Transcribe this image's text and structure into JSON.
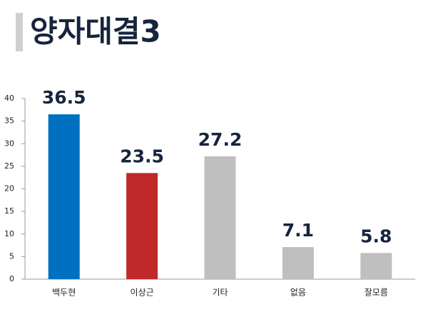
{
  "chart_data": {
    "type": "bar",
    "title": "양자대결3",
    "categories": [
      "백두현",
      "이상근",
      "기타",
      "없음",
      "잘모름"
    ],
    "values": [
      36.5,
      23.5,
      27.2,
      7.1,
      5.8
    ],
    "colors": [
      "#0070c0",
      "#c0282a",
      "#bfbfbf",
      "#bfbfbf",
      "#bfbfbf"
    ],
    "ylim": [
      0,
      40
    ],
    "yticks": [
      0,
      5,
      10,
      15,
      20,
      25,
      30,
      35,
      40
    ],
    "grid": false
  }
}
